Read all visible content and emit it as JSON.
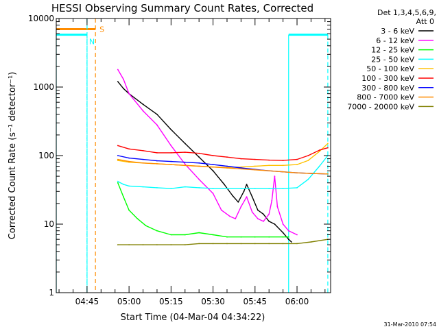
{
  "chart_data": {
    "type": "line",
    "title": "HESSI Observing Summary Count Rates, Corrected",
    "xlabel": "Start Time (04-Mar-04 04:34:22)",
    "ylabel": "Corrected Count Rate (s⁻¹ detector⁻¹)",
    "y_scale": "log",
    "ylim": [
      1,
      10000
    ],
    "xlim": [
      "04:34",
      "06:12"
    ],
    "x_ticks": [
      "04:45",
      "05:00",
      "05:15",
      "05:30",
      "05:45",
      "06:00"
    ],
    "y_ticks": [
      {
        "value": 1,
        "label": "1"
      },
      {
        "value": 10,
        "label": "10"
      },
      {
        "value": 100,
        "label": "100"
      },
      {
        "value": 1000,
        "label": "1000"
      },
      {
        "value": 10000,
        "label": "10000"
      }
    ],
    "legend_header": [
      "Det 1,3,4,5,6,9,",
      "Att 0"
    ],
    "legend_position": "right",
    "footer": "31-Mar-2010 07:54",
    "series": [
      {
        "name": "3 - 6 keV",
        "color": "#000000",
        "points": [
          [
            "04:56",
            1200
          ],
          [
            "04:58",
            950
          ],
          [
            "05:00",
            800
          ],
          [
            "05:05",
            560
          ],
          [
            "05:10",
            400
          ],
          [
            "05:15",
            240
          ],
          [
            "05:20",
            150
          ],
          [
            "05:25",
            95
          ],
          [
            "05:30",
            60
          ],
          [
            "05:34",
            38
          ],
          [
            "05:37",
            26
          ],
          [
            "05:39",
            21
          ],
          [
            "05:41",
            30
          ],
          [
            "05:42",
            38
          ],
          [
            "05:44",
            25
          ],
          [
            "05:46",
            16
          ],
          [
            "05:48",
            14
          ],
          [
            "05:50",
            11
          ],
          [
            "05:52",
            10
          ],
          [
            "05:55",
            7.5
          ],
          [
            "05:57",
            6
          ],
          [
            "05:58",
            5.5
          ]
        ]
      },
      {
        "name": "6 - 12 keV",
        "color": "#ff00ff",
        "points": [
          [
            "04:56",
            1800
          ],
          [
            "04:58",
            1300
          ],
          [
            "05:00",
            800
          ],
          [
            "05:05",
            450
          ],
          [
            "05:10",
            280
          ],
          [
            "05:15",
            140
          ],
          [
            "05:20",
            75
          ],
          [
            "05:25",
            45
          ],
          [
            "05:30",
            28
          ],
          [
            "05:33",
            16
          ],
          [
            "05:36",
            13
          ],
          [
            "05:38",
            12
          ],
          [
            "05:40",
            18
          ],
          [
            "05:42",
            25
          ],
          [
            "05:44",
            15
          ],
          [
            "05:46",
            12
          ],
          [
            "05:48",
            11
          ],
          [
            "05:50",
            14
          ],
          [
            "05:51",
            22
          ],
          [
            "05:52",
            50
          ],
          [
            "05:53",
            18
          ],
          [
            "05:55",
            10
          ],
          [
            "05:57",
            8
          ],
          [
            "06:00",
            7
          ]
        ]
      },
      {
        "name": "12 - 25 keV",
        "color": "#00ff00",
        "points": [
          [
            "04:56",
            40
          ],
          [
            "04:58",
            25
          ],
          [
            "05:00",
            16
          ],
          [
            "05:03",
            12
          ],
          [
            "05:06",
            9.5
          ],
          [
            "05:10",
            8
          ],
          [
            "05:15",
            7
          ],
          [
            "05:20",
            7
          ],
          [
            "05:25",
            7.5
          ],
          [
            "05:30",
            7
          ],
          [
            "05:35",
            6.5
          ],
          [
            "05:40",
            6.5
          ],
          [
            "05:45",
            6.5
          ],
          [
            "05:50",
            6.5
          ],
          [
            "05:55",
            6.5
          ],
          [
            "05:57",
            6.5
          ]
        ]
      },
      {
        "name": "25 - 50 keV",
        "color": "#00ffff",
        "points": [
          [
            "04:56",
            42
          ],
          [
            "04:58",
            38
          ],
          [
            "05:00",
            36
          ],
          [
            "05:05",
            35
          ],
          [
            "05:10",
            34
          ],
          [
            "05:15",
            33
          ],
          [
            "05:20",
            35
          ],
          [
            "05:25",
            34
          ],
          [
            "05:30",
            33
          ],
          [
            "05:35",
            33
          ],
          [
            "05:40",
            33
          ],
          [
            "05:45",
            33
          ],
          [
            "05:50",
            33
          ],
          [
            "05:55",
            33
          ],
          [
            "06:00",
            34
          ],
          [
            "06:04",
            45
          ],
          [
            "06:08",
            70
          ],
          [
            "06:11",
            100
          ]
        ]
      },
      {
        "name": "50 - 100 keV",
        "color": "#ffc000",
        "points": [
          [
            "04:56",
            85
          ],
          [
            "05:00",
            80
          ],
          [
            "05:05",
            78
          ],
          [
            "05:10",
            76
          ],
          [
            "05:15",
            74
          ],
          [
            "05:20",
            72
          ],
          [
            "05:25",
            70
          ],
          [
            "05:30",
            68
          ],
          [
            "05:35",
            67
          ],
          [
            "05:40",
            68
          ],
          [
            "05:45",
            70
          ],
          [
            "05:50",
            72
          ],
          [
            "05:55",
            72
          ],
          [
            "06:00",
            74
          ],
          [
            "06:04",
            85
          ],
          [
            "06:08",
            115
          ],
          [
            "06:11",
            150
          ]
        ]
      },
      {
        "name": "100 - 300 keV",
        "color": "#ff0000",
        "points": [
          [
            "04:56",
            140
          ],
          [
            "05:00",
            125
          ],
          [
            "05:05",
            118
          ],
          [
            "05:10",
            110
          ],
          [
            "05:15",
            110
          ],
          [
            "05:20",
            112
          ],
          [
            "05:25",
            108
          ],
          [
            "05:30",
            100
          ],
          [
            "05:35",
            95
          ],
          [
            "05:40",
            90
          ],
          [
            "05:45",
            88
          ],
          [
            "05:50",
            86
          ],
          [
            "05:55",
            85
          ],
          [
            "06:00",
            88
          ],
          [
            "06:04",
            100
          ],
          [
            "06:08",
            120
          ],
          [
            "06:11",
            130
          ]
        ]
      },
      {
        "name": "300 - 800 keV",
        "color": "#0000ff",
        "points": [
          [
            "04:56",
            100
          ],
          [
            "05:00",
            92
          ],
          [
            "05:05",
            88
          ],
          [
            "05:10",
            84
          ],
          [
            "05:15",
            82
          ],
          [
            "05:20",
            80
          ],
          [
            "05:25",
            78
          ],
          [
            "05:30",
            74
          ],
          [
            "05:35",
            70
          ],
          [
            "05:40",
            66
          ],
          [
            "05:45",
            63
          ],
          [
            "05:50",
            60
          ],
          [
            "05:55",
            58
          ],
          [
            "06:00",
            56
          ],
          [
            "06:05",
            55
          ],
          [
            "06:11",
            54
          ]
        ]
      },
      {
        "name": "800 - 7000 keV",
        "color": "#ff8c00",
        "points": [
          [
            "04:56",
            88
          ],
          [
            "05:00",
            82
          ],
          [
            "05:05",
            78
          ],
          [
            "05:10",
            76
          ],
          [
            "05:15",
            74
          ],
          [
            "05:20",
            72
          ],
          [
            "05:25",
            70
          ],
          [
            "05:30",
            68
          ],
          [
            "05:35",
            66
          ],
          [
            "05:40",
            64
          ],
          [
            "05:45",
            62
          ],
          [
            "05:50",
            60
          ],
          [
            "05:55",
            58
          ],
          [
            "06:00",
            56
          ],
          [
            "06:05",
            55
          ],
          [
            "06:11",
            54
          ]
        ]
      },
      {
        "name": "7000 - 20000 keV",
        "color": "#808000",
        "points": [
          [
            "04:56",
            5
          ],
          [
            "05:00",
            5
          ],
          [
            "05:05",
            5
          ],
          [
            "05:10",
            5
          ],
          [
            "05:15",
            5
          ],
          [
            "05:20",
            5
          ],
          [
            "05:25",
            5.2
          ],
          [
            "05:30",
            5.2
          ],
          [
            "05:35",
            5.2
          ],
          [
            "05:40",
            5.2
          ],
          [
            "05:45",
            5.2
          ],
          [
            "05:50",
            5.2
          ],
          [
            "05:55",
            5.2
          ],
          [
            "06:00",
            5.2
          ],
          [
            "06:05",
            5.5
          ],
          [
            "06:11",
            6
          ]
        ]
      }
    ],
    "overlays": [
      {
        "label": "",
        "color": "#00ffff",
        "style": "solid",
        "x": [
          "04:34",
          "04:45"
        ],
        "y": 5800
      },
      {
        "label": "",
        "color": "#00ffff",
        "style": "solid",
        "x": [
          "05:57",
          "06:11"
        ],
        "y": 5800
      },
      {
        "label": "S",
        "color": "#ff8c00",
        "style": "solid",
        "x": [
          "04:34",
          "04:48"
        ],
        "y": 7000
      },
      {
        "label": "N",
        "color": "#00ffff",
        "style": "dashed",
        "x": [
          "04:45"
        ],
        "y": null
      },
      {
        "label": "",
        "color": "#ff8c00",
        "style": "dashed",
        "x": [
          "04:48"
        ],
        "y": null
      }
    ]
  },
  "colors": {
    "night": "#00ffff",
    "saa": "#ff8c00",
    "axis": "#000000",
    "background": "#ffffff"
  }
}
